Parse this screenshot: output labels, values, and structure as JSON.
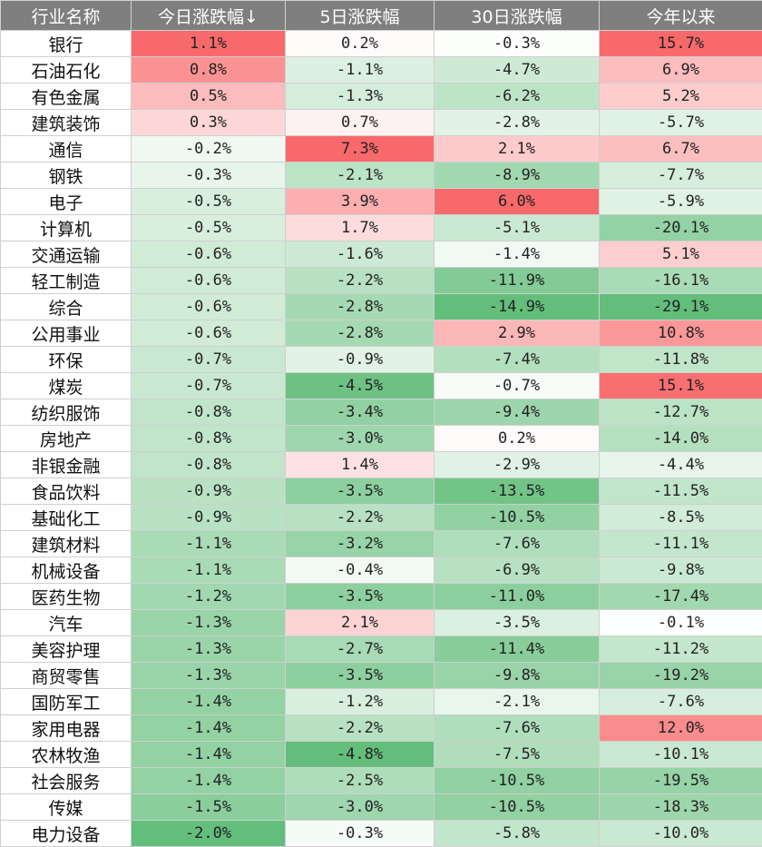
{
  "headers": [
    "行业名称",
    "今日涨跌幅↓",
    "5日涨跌幅",
    "30日涨跌幅",
    "今年以来"
  ],
  "colors": {
    "header_bg": "#7f7f7f",
    "positive": "#f8696b",
    "negative": "#63be7b",
    "neutral": "#ffffff"
  },
  "rows": [
    [
      "银行",
      "1.1%",
      "0.2%",
      "-0.3%",
      "15.7%"
    ],
    [
      "石油石化",
      "0.8%",
      "-1.1%",
      "-4.7%",
      "6.9%"
    ],
    [
      "有色金属",
      "0.5%",
      "-1.3%",
      "-6.2%",
      "5.2%"
    ],
    [
      "建筑装饰",
      "0.3%",
      "0.7%",
      "-2.8%",
      "-5.7%"
    ],
    [
      "通信",
      "-0.2%",
      "7.3%",
      "2.1%",
      "6.7%"
    ],
    [
      "钢铁",
      "-0.3%",
      "-2.1%",
      "-8.9%",
      "-7.7%"
    ],
    [
      "电子",
      "-0.5%",
      "3.9%",
      "6.0%",
      "-5.9%"
    ],
    [
      "计算机",
      "-0.5%",
      "1.7%",
      "-5.1%",
      "-20.1%"
    ],
    [
      "交通运输",
      "-0.6%",
      "-1.6%",
      "-1.4%",
      "5.1%"
    ],
    [
      "轻工制造",
      "-0.6%",
      "-2.2%",
      "-11.9%",
      "-16.1%"
    ],
    [
      "综合",
      "-0.6%",
      "-2.8%",
      "-14.9%",
      "-29.1%"
    ],
    [
      "公用事业",
      "-0.6%",
      "-2.8%",
      "2.9%",
      "10.8%"
    ],
    [
      "环保",
      "-0.7%",
      "-0.9%",
      "-7.4%",
      "-11.8%"
    ],
    [
      "煤炭",
      "-0.7%",
      "-4.5%",
      "-0.7%",
      "15.1%"
    ],
    [
      "纺织服饰",
      "-0.8%",
      "-3.4%",
      "-9.4%",
      "-12.7%"
    ],
    [
      "房地产",
      "-0.8%",
      "-3.0%",
      "0.2%",
      "-14.0%"
    ],
    [
      "非银金融",
      "-0.8%",
      "1.4%",
      "-2.9%",
      "-4.4%"
    ],
    [
      "食品饮料",
      "-0.9%",
      "-3.5%",
      "-13.5%",
      "-11.5%"
    ],
    [
      "基础化工",
      "-0.9%",
      "-2.2%",
      "-10.5%",
      "-8.5%"
    ],
    [
      "建筑材料",
      "-1.1%",
      "-3.2%",
      "-7.6%",
      "-11.1%"
    ],
    [
      "机械设备",
      "-1.1%",
      "-0.4%",
      "-6.9%",
      "-9.8%"
    ],
    [
      "医药生物",
      "-1.2%",
      "-3.5%",
      "-11.0%",
      "-17.4%"
    ],
    [
      "汽车",
      "-1.3%",
      "2.1%",
      "-3.5%",
      "-0.1%"
    ],
    [
      "美容护理",
      "-1.3%",
      "-2.7%",
      "-11.4%",
      "-11.2%"
    ],
    [
      "商贸零售",
      "-1.3%",
      "-3.5%",
      "-9.8%",
      "-19.2%"
    ],
    [
      "国防军工",
      "-1.4%",
      "-1.2%",
      "-2.1%",
      "-7.6%"
    ],
    [
      "家用电器",
      "-1.4%",
      "-2.2%",
      "-7.6%",
      "12.0%"
    ],
    [
      "农林牧渔",
      "-1.4%",
      "-4.8%",
      "-7.5%",
      "-10.1%"
    ],
    [
      "社会服务",
      "-1.4%",
      "-2.5%",
      "-10.5%",
      "-19.5%"
    ],
    [
      "传媒",
      "-1.5%",
      "-3.0%",
      "-10.5%",
      "-18.3%"
    ],
    [
      "电力设备",
      "-2.0%",
      "-0.3%",
      "-5.8%",
      "-10.0%"
    ]
  ]
}
